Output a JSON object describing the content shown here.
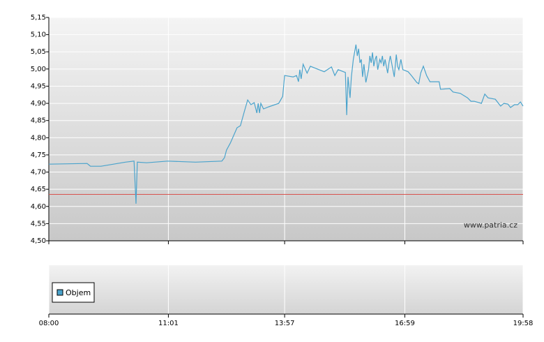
{
  "chart_data": {
    "type": "line",
    "x": [
      480,
      538,
      543,
      559,
      596,
      609,
      612,
      614,
      628,
      660,
      702,
      742,
      746,
      749,
      755,
      765,
      770,
      776,
      781,
      786,
      791,
      795,
      797,
      799,
      801,
      805,
      813,
      828,
      834,
      837,
      850,
      855,
      858,
      860,
      862,
      865,
      871,
      876,
      897,
      908,
      913,
      918,
      929,
      931,
      933,
      936,
      938,
      941,
      945,
      947,
      949,
      951,
      953,
      955,
      957,
      960,
      964,
      966,
      968,
      970,
      972,
      974,
      976,
      978,
      981,
      983,
      985,
      987,
      989,
      993,
      995,
      997,
      999,
      1003,
      1006,
      1008,
      1010,
      1013,
      1016,
      1024,
      1029,
      1037,
      1040,
      1043,
      1047,
      1052,
      1057,
      1071,
      1073,
      1087,
      1092,
      1103,
      1114,
      1119,
      1124,
      1135,
      1140,
      1145,
      1156,
      1164,
      1169,
      1175,
      1179,
      1185,
      1190,
      1194,
      1198
    ],
    "series": [
      {
        "color": "#4aa3cc",
        "values": [
          4.723,
          4.725,
          4.717,
          4.717,
          4.729,
          4.732,
          4.608,
          4.729,
          4.727,
          4.732,
          4.729,
          4.732,
          4.742,
          4.764,
          4.785,
          4.829,
          4.835,
          4.876,
          4.91,
          4.896,
          4.902,
          4.872,
          4.9,
          4.872,
          4.9,
          4.884,
          4.89,
          4.9,
          4.92,
          4.981,
          4.977,
          4.981,
          4.963,
          4.998,
          4.971,
          5.014,
          4.988,
          5.008,
          4.992,
          5.006,
          4.981,
          4.998,
          4.99,
          4.866,
          4.977,
          4.916,
          4.977,
          5.028,
          5.071,
          5.038,
          5.059,
          5.018,
          5.028,
          4.977,
          5.014,
          4.961,
          4.998,
          5.038,
          5.018,
          5.048,
          5.008,
          5.028,
          5.038,
          4.998,
          5.028,
          5.018,
          5.038,
          5.008,
          5.028,
          4.988,
          5.018,
          5.038,
          5.018,
          4.977,
          5.042,
          5.008,
          4.998,
          5.028,
          4.998,
          4.992,
          4.981,
          4.961,
          4.957,
          4.988,
          5.008,
          4.981,
          4.963,
          4.963,
          4.941,
          4.943,
          4.933,
          4.929,
          4.916,
          4.906,
          4.906,
          4.9,
          4.927,
          4.916,
          4.912,
          4.892,
          4.9,
          4.898,
          4.888,
          4.896,
          4.896,
          4.904,
          4.892
        ]
      }
    ],
    "reference_value": 4.635,
    "reference_color": "#d9534f",
    "xlim": [
      480,
      1198
    ],
    "xticks": [
      {
        "value": 480,
        "label": "08:00"
      },
      {
        "value": 661,
        "label": "11:01"
      },
      {
        "value": 837,
        "label": "13:57"
      },
      {
        "value": 1019,
        "label": "16:59"
      },
      {
        "value": 1198,
        "label": "19:58"
      }
    ],
    "ylim": [
      4.5,
      5.15
    ],
    "yticks": [
      {
        "value": 4.5,
        "label": "4,50"
      },
      {
        "value": 4.55,
        "label": "4,55"
      },
      {
        "value": 4.6,
        "label": "4,60"
      },
      {
        "value": 4.65,
        "label": "4,65"
      },
      {
        "value": 4.7,
        "label": "4,70"
      },
      {
        "value": 4.75,
        "label": "4,75"
      },
      {
        "value": 4.8,
        "label": "4,80"
      },
      {
        "value": 4.85,
        "label": "4,85"
      },
      {
        "value": 4.9,
        "label": "4,90"
      },
      {
        "value": 4.95,
        "label": "4,95"
      },
      {
        "value": 5.0,
        "label": "5,00"
      },
      {
        "value": 5.05,
        "label": "5,05"
      },
      {
        "value": 5.1,
        "label": "5,10"
      },
      {
        "value": 5.15,
        "label": "5,15"
      }
    ],
    "grid": true,
    "watermark": "www.patria.cz",
    "legend_label": "Objem",
    "legend_color": "#4aa3cc"
  }
}
